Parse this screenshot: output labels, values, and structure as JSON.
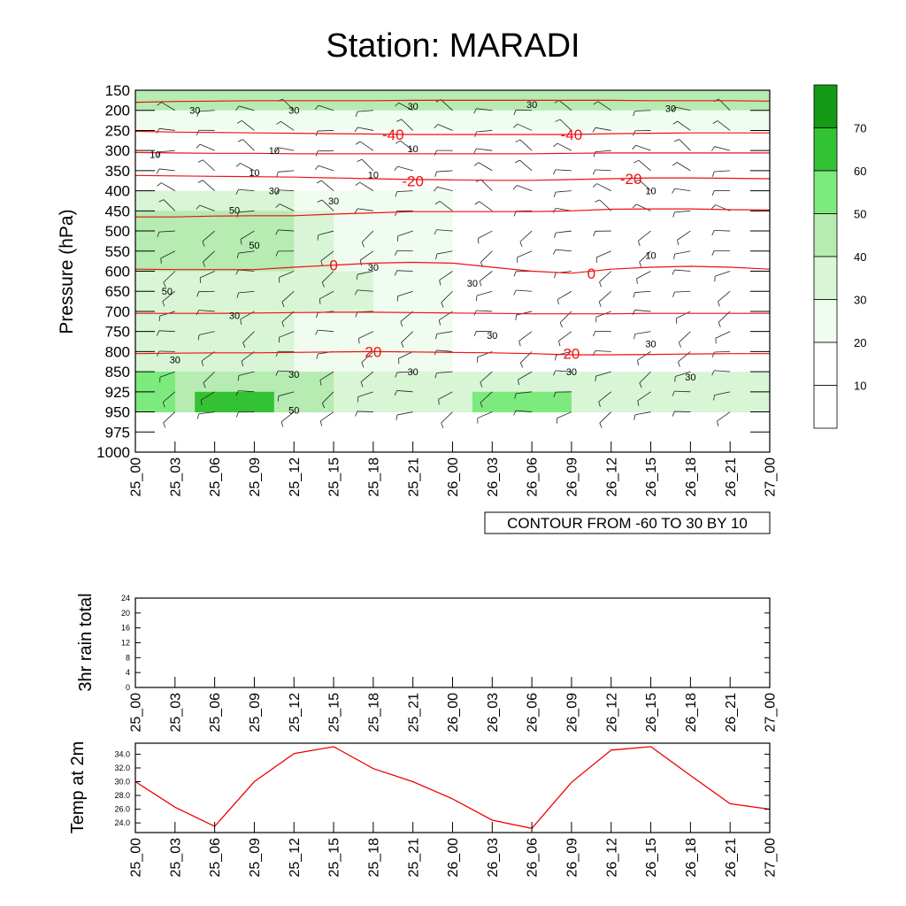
{
  "chart_data": [
    {
      "type": "heatmap",
      "title": "Station: MARADI",
      "ylabel": "Pressure (hPa)",
      "y_levels": [
        150,
        200,
        250,
        300,
        350,
        400,
        450,
        500,
        550,
        600,
        650,
        700,
        750,
        800,
        850,
        925,
        950,
        975,
        1000
      ],
      "x_ticks": [
        "25_00",
        "25_03",
        "25_06",
        "25_09",
        "25_12",
        "25_15",
        "25_18",
        "25_21",
        "26_00",
        "26_03",
        "26_06",
        "26_09",
        "26_12",
        "26_15",
        "26_18",
        "26_21",
        "27_00"
      ],
      "colorbar": {
        "levels": [
          10,
          20,
          30,
          40,
          50,
          60,
          70
        ],
        "colors": [
          "#ffffff",
          "#ffffff",
          "#f0fcf0",
          "#d8f5d5",
          "#b6ebb1",
          "#7cea7c",
          "#33c233",
          "#149a14"
        ]
      },
      "humidity_contour_labels": [
        {
          "text": "30",
          "pos": [
            1.5,
            200
          ]
        },
        {
          "text": "30",
          "pos": [
            4,
            200
          ]
        },
        {
          "text": "30",
          "pos": [
            7,
            190
          ]
        },
        {
          "text": "30",
          "pos": [
            10,
            185
          ]
        },
        {
          "text": "30",
          "pos": [
            13.5,
            195
          ]
        },
        {
          "text": "10",
          "pos": [
            0.5,
            310
          ]
        },
        {
          "text": "10",
          "pos": [
            3.5,
            300
          ]
        },
        {
          "text": "10",
          "pos": [
            7,
            295
          ]
        },
        {
          "text": "10",
          "pos": [
            3,
            355
          ]
        },
        {
          "text": "10",
          "pos": [
            6,
            360
          ]
        },
        {
          "text": "10",
          "pos": [
            13,
            400
          ]
        },
        {
          "text": "10",
          "pos": [
            13,
            560
          ]
        },
        {
          "text": "30",
          "pos": [
            3.5,
            400
          ]
        },
        {
          "text": "30",
          "pos": [
            5,
            425
          ]
        },
        {
          "text": "50",
          "pos": [
            2.5,
            448
          ]
        },
        {
          "text": "50",
          "pos": [
            3,
            535
          ]
        },
        {
          "text": "50",
          "pos": [
            0.8,
            650
          ]
        },
        {
          "text": "30",
          "pos": [
            6,
            590
          ]
        },
        {
          "text": "30",
          "pos": [
            8.5,
            630
          ]
        },
        {
          "text": "30",
          "pos": [
            2.5,
            710
          ]
        },
        {
          "text": "30",
          "pos": [
            9,
            760
          ]
        },
        {
          "text": "30",
          "pos": [
            13,
            780
          ]
        },
        {
          "text": "30",
          "pos": [
            1,
            820
          ]
        },
        {
          "text": "30",
          "pos": [
            4,
            860
          ]
        },
        {
          "text": "30",
          "pos": [
            7,
            850
          ]
        },
        {
          "text": "30",
          "pos": [
            11,
            850
          ]
        },
        {
          "text": "30",
          "pos": [
            14,
            870
          ]
        },
        {
          "text": "50",
          "pos": [
            4,
            948
          ]
        }
      ],
      "temperature_labels": [
        {
          "text": "-40",
          "pos": [
            6.5,
            260
          ]
        },
        {
          "text": "-40",
          "pos": [
            11,
            260
          ]
        },
        {
          "text": "-20",
          "pos": [
            7,
            375
          ]
        },
        {
          "text": "-20",
          "pos": [
            12.5,
            370
          ]
        },
        {
          "text": "0",
          "pos": [
            5,
            585
          ]
        },
        {
          "text": "0",
          "pos": [
            11.5,
            605
          ]
        },
        {
          "text": "20",
          "pos": [
            6,
            800
          ]
        },
        {
          "text": "20",
          "pos": [
            11,
            805
          ]
        }
      ],
      "temperature_lines": [
        {
          "level": -50,
          "values": [
            180,
            178,
            177,
            176,
            176,
            176,
            176,
            175,
            175,
            175,
            175,
            175,
            175,
            176,
            176,
            176,
            177
          ]
        },
        {
          "level": -40,
          "values": [
            252,
            254,
            255,
            256,
            257,
            258,
            259,
            260,
            260,
            260,
            260,
            260,
            258,
            257,
            256,
            256,
            256
          ]
        },
        {
          "level": -30,
          "values": [
            305,
            306,
            307,
            307,
            308,
            308,
            308,
            308,
            308,
            308,
            308,
            307,
            306,
            306,
            306,
            306,
            306
          ]
        },
        {
          "level": -20,
          "values": [
            362,
            363,
            364,
            365,
            366,
            368,
            370,
            372,
            373,
            374,
            374,
            372,
            370,
            368,
            368,
            369,
            370
          ]
        },
        {
          "level": -10,
          "values": [
            465,
            465,
            463,
            462,
            462,
            458,
            455,
            452,
            452,
            452,
            452,
            450,
            446,
            445,
            445,
            447,
            448
          ]
        },
        {
          "level": 0,
          "values": [
            595,
            596,
            596,
            596,
            590,
            585,
            580,
            578,
            580,
            590,
            600,
            605,
            595,
            590,
            588,
            590,
            595
          ]
        },
        {
          "level": 10,
          "values": [
            705,
            705,
            705,
            704,
            703,
            702,
            702,
            703,
            704,
            705,
            706,
            706,
            706,
            705,
            705,
            705,
            705
          ]
        },
        {
          "level": 20,
          "values": [
            805,
            804,
            803,
            803,
            802,
            801,
            800,
            801,
            802,
            803,
            805,
            808,
            808,
            807,
            806,
            805,
            805
          ]
        }
      ],
      "contour_info": "CONTOUR FROM -60 TO 30 BY 10"
    },
    {
      "type": "line",
      "ylabel": "3hr rain total",
      "ylim": [
        0,
        24
      ],
      "y_ticks": [
        "0",
        "4",
        "8",
        "12",
        "16",
        "20",
        "24"
      ],
      "x_ticks": [
        "25_00",
        "25_03",
        "25_06",
        "25_09",
        "25_12",
        "25_15",
        "25_18",
        "25_21",
        "26_00",
        "26_03",
        "26_06",
        "26_09",
        "26_12",
        "26_15",
        "26_18",
        "26_21",
        "27_00"
      ],
      "values": []
    },
    {
      "type": "line",
      "ylabel": "Temp at 2m",
      "ylim": [
        22.6,
        35.6
      ],
      "y_ticks": [
        "24.0",
        "26.0",
        "28.0",
        "30.0",
        "32.0",
        "34.0"
      ],
      "x_ticks": [
        "25_00",
        "25_03",
        "25_06",
        "25_09",
        "25_12",
        "25_15",
        "25_18",
        "25_21",
        "26_00",
        "26_03",
        "26_06",
        "26_09",
        "26_12",
        "26_15",
        "26_18",
        "26_21",
        "27_00"
      ],
      "values": [
        30.0,
        26.3,
        23.5,
        30.0,
        34.1,
        35.1,
        31.9,
        30.0,
        27.5,
        24.4,
        23.2,
        29.9,
        34.6,
        35.1,
        30.9,
        26.8,
        26.0
      ],
      "color": "#ee0000"
    }
  ],
  "colors": {
    "temperature": "#ee1111",
    "humidity_line": "#000000",
    "wind_barb": "#222222"
  }
}
